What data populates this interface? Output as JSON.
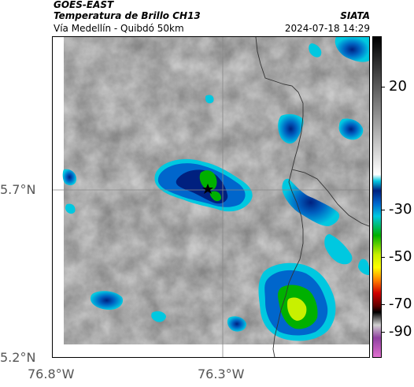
{
  "header": {
    "satellite": "GOES-EAST",
    "product": "Temperatura de Brillo CH13",
    "route": "Vía Medellín - Quibdó 50km",
    "organization": "SIATA",
    "datetime": "2024-07-18 14:29"
  },
  "map": {
    "latitude_labels": [
      "5.7°N",
      "5.2°N"
    ],
    "longitude_labels": [
      "76.8°W",
      "76.3°W"
    ],
    "marker_icon": "star-icon",
    "gridline_color": "#888888",
    "border_color": "#333333"
  },
  "colorbar": {
    "tick_labels": [
      "20",
      "-30",
      "-50",
      "-70",
      "-90"
    ],
    "colors": {
      "gray_top": "#000000",
      "gray_bottom": "#ffffff",
      "blue_deep": "#00207f",
      "blue": "#0066cc",
      "cyan": "#00c8e0",
      "green": "#00b000",
      "lime": "#c8f000",
      "yellow": "#ffff00",
      "orange": "#ff8000",
      "red": "#d00000",
      "dark_red": "#600000",
      "purple": "#9040a0",
      "pink": "#e070d0"
    }
  }
}
